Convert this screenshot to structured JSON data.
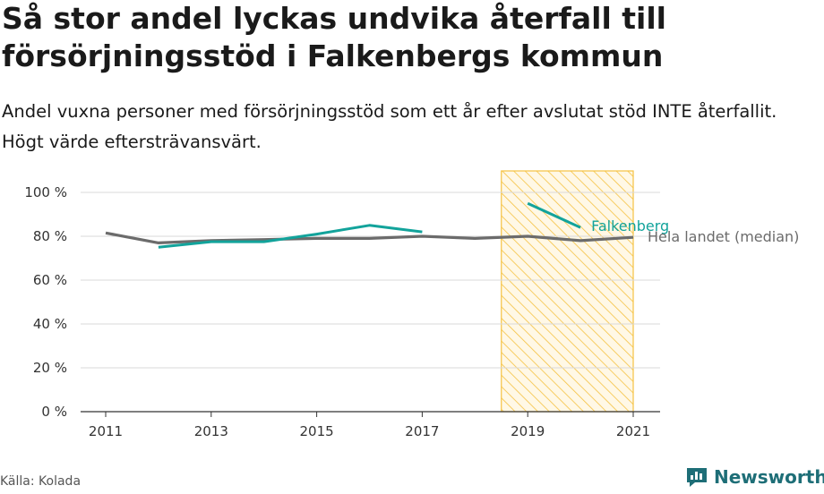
{
  "header": {
    "title": "Så stor andel lyckas undvika återfall till försörjningsstöd i Falkenbergs kommun",
    "subtitle": "Andel vuxna personer med försörjningsstöd som ett år efter avslutat stöd INTE återfallit. Högt värde eftersträvansvärt."
  },
  "footer": {
    "source": "Källa: Kolada",
    "brand": "Newsworthy"
  },
  "colors": {
    "falkenberg": "#12a39b",
    "median": "#6b6b6b",
    "highlight": "#f5c242",
    "grid": "#d9d9d9",
    "brand": "#1e6e77"
  },
  "chart_data": {
    "type": "line",
    "title": "Så stor andel lyckas undvika återfall till försörjningsstöd i Falkenbergs kommun",
    "xlabel": "",
    "ylabel": "",
    "x": [
      2011,
      2012,
      2013,
      2014,
      2015,
      2016,
      2017,
      2018,
      2019,
      2020,
      2021
    ],
    "xticks": [
      "2011",
      "2013",
      "2015",
      "2017",
      "2019",
      "2021"
    ],
    "yticks": [
      "0 %",
      "20 %",
      "40 %",
      "60 %",
      "80 %",
      "100 %"
    ],
    "ylim": [
      0,
      100
    ],
    "grid": true,
    "highlight_range": [
      2018.5,
      2021
    ],
    "series": [
      {
        "name": "Falkenberg",
        "values": [
          null,
          75,
          77.5,
          77.5,
          81,
          85,
          82,
          null,
          95,
          84,
          null
        ]
      },
      {
        "name": "Hela landet (median)",
        "values": [
          81.5,
          77,
          78,
          78.5,
          79,
          79,
          80,
          79,
          80,
          78,
          79.5
        ]
      }
    ]
  }
}
